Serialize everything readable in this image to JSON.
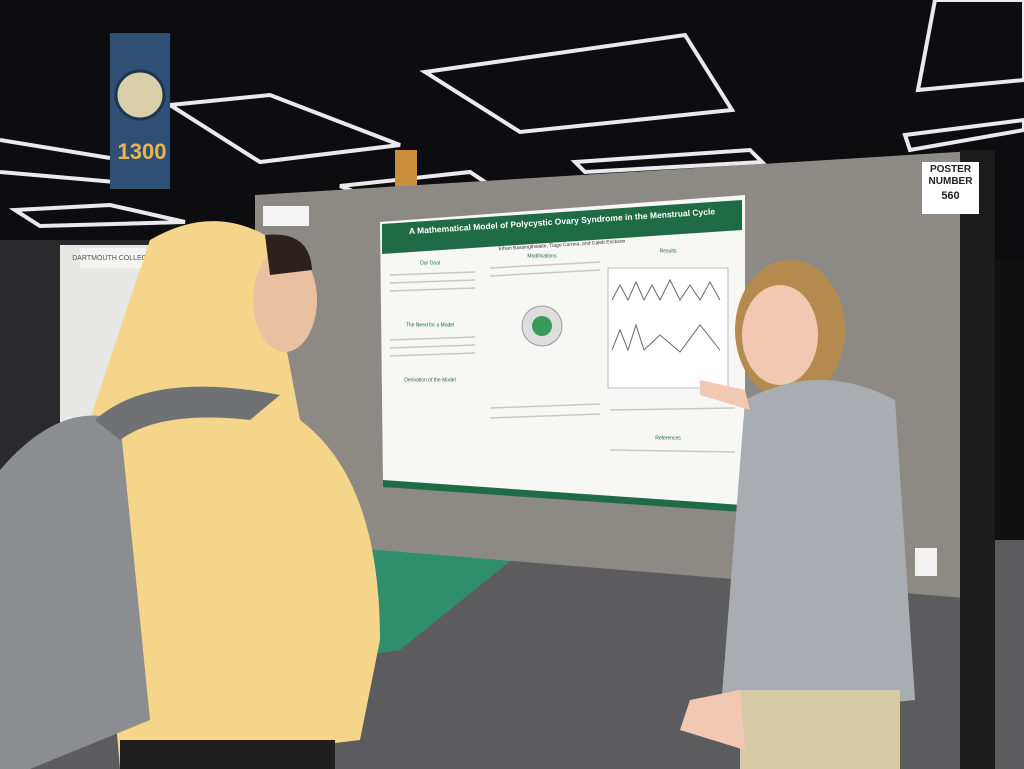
{
  "banner": {
    "number": "1300"
  },
  "booth_sign": {
    "label": "DARTMOUTH COLLEGE"
  },
  "poster_sign": {
    "label": "POSTER NUMBER",
    "number": "560"
  },
  "poster": {
    "title": "A Mathematical Model of Polycystic Ovary Syndrome in the Menstrual Cycle",
    "authors": "Ethan Bassingthwaite, Tiago Correia, and Caleb Erickson",
    "sections": [
      "Our Goal",
      "Modifications",
      "Results",
      "The Need for a Model",
      "Derivation of the Model",
      "References"
    ]
  }
}
